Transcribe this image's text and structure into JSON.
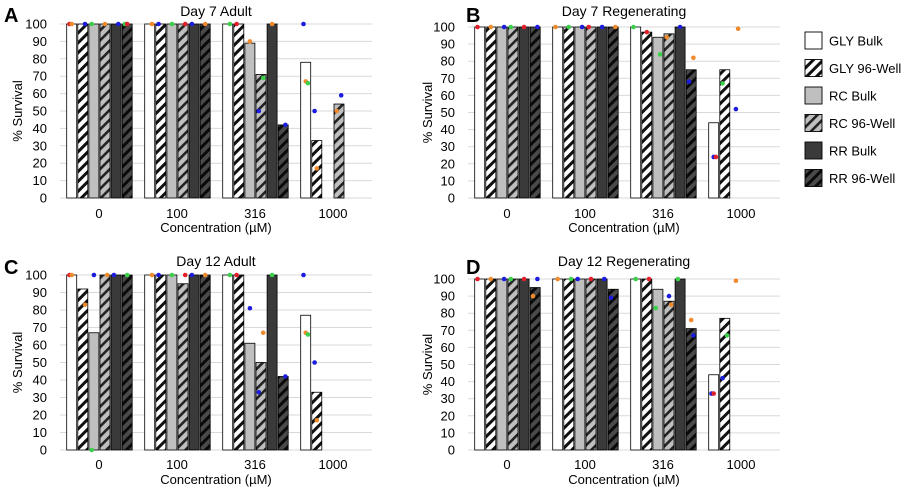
{
  "colors": {
    "gly_bulk": "#ffffff",
    "rc_bulk": "#bfbfbf",
    "rr_bulk": "#3a3a3a",
    "dot_orange": "#f08a2c",
    "dot_green": "#3ad04a",
    "dot_blue": "#1c1cde",
    "dot_red": "#e2202a",
    "grid": "#d9d9d9"
  },
  "legend": [
    {
      "name": "GLY Bulk",
      "color": "#ffffff",
      "pattern": "solid"
    },
    {
      "name": "GLY 96-Well",
      "color": "#ffffff",
      "pattern": "hatch"
    },
    {
      "name": "RC Bulk",
      "color": "#bfbfbf",
      "pattern": "solid"
    },
    {
      "name": "RC 96-Well",
      "color": "#bfbfbf",
      "pattern": "hatch"
    },
    {
      "name": "RR Bulk",
      "color": "#3a3a3a",
      "pattern": "solid"
    },
    {
      "name": "RR 96-Well",
      "color": "#3a3a3a",
      "pattern": "hatch"
    }
  ],
  "chart_data": [
    {
      "letter": "A",
      "type": "bar",
      "title": "Day 7 Adult",
      "xlabel": "Concentration (µM)",
      "ylabel": "% Survival",
      "ylim": [
        0,
        100
      ],
      "yticks": [
        "0",
        "10",
        "20",
        "30",
        "40",
        "50",
        "60",
        "70",
        "80",
        "90",
        "100"
      ],
      "categories": [
        "0",
        "100",
        "316",
        "1000"
      ],
      "series": [
        {
          "name": "GLY Bulk",
          "values": [
            100,
            100,
            100,
            78
          ]
        },
        {
          "name": "GLY 96-Well",
          "values": [
            100,
            100,
            100,
            33
          ]
        },
        {
          "name": "RC Bulk",
          "values": [
            100,
            100,
            89,
            null
          ]
        },
        {
          "name": "RC 96-Well",
          "values": [
            100,
            100,
            71,
            54
          ]
        },
        {
          "name": "RR Bulk",
          "values": [
            100,
            100,
            100,
            null
          ]
        },
        {
          "name": "RR 96-Well",
          "values": [
            100,
            100,
            42,
            null
          ]
        }
      ],
      "points": [
        {
          "c": 0,
          "s": 0,
          "y": 100,
          "color": "dot_red"
        },
        {
          "c": 0,
          "s": 0,
          "y": 100,
          "color": "dot_orange"
        },
        {
          "c": 0,
          "s": 1,
          "y": 100,
          "color": "dot_blue"
        },
        {
          "c": 0,
          "s": 2,
          "y": 100,
          "color": "dot_green"
        },
        {
          "c": 0,
          "s": 3,
          "y": 100,
          "color": "dot_orange"
        },
        {
          "c": 0,
          "s": 4,
          "y": 100,
          "color": "dot_blue"
        },
        {
          "c": 0,
          "s": 5,
          "y": 100,
          "color": "dot_green"
        },
        {
          "c": 0,
          "s": 5,
          "y": 100,
          "color": "dot_red"
        },
        {
          "c": 1,
          "s": 0,
          "y": 100,
          "color": "dot_orange"
        },
        {
          "c": 1,
          "s": 1,
          "y": 100,
          "color": "dot_blue"
        },
        {
          "c": 1,
          "s": 2,
          "y": 100,
          "color": "dot_green"
        },
        {
          "c": 1,
          "s": 3,
          "y": 100,
          "color": "dot_red"
        },
        {
          "c": 1,
          "s": 4,
          "y": 100,
          "color": "dot_blue"
        },
        {
          "c": 1,
          "s": 5,
          "y": 100,
          "color": "dot_orange"
        },
        {
          "c": 2,
          "s": 0,
          "y": 100,
          "color": "dot_green"
        },
        {
          "c": 2,
          "s": 1,
          "y": 100,
          "color": "dot_red"
        },
        {
          "c": 2,
          "s": 2,
          "y": 90,
          "color": "dot_orange"
        },
        {
          "c": 2,
          "s": 3,
          "y": 69,
          "color": "dot_green"
        },
        {
          "c": 2,
          "s": 3,
          "y": 50,
          "color": "dot_blue"
        },
        {
          "c": 2,
          "s": 4,
          "y": 100,
          "color": "dot_orange"
        },
        {
          "c": 2,
          "s": 5,
          "y": 42,
          "color": "dot_blue"
        },
        {
          "c": 3,
          "s": 0,
          "y": 100,
          "color": "dot_blue"
        },
        {
          "c": 3,
          "s": 0,
          "y": 67,
          "color": "dot_orange"
        },
        {
          "c": 3,
          "s": 0,
          "y": 66,
          "color": "dot_green"
        },
        {
          "c": 3,
          "s": 1,
          "y": 50,
          "color": "dot_blue"
        },
        {
          "c": 3,
          "s": 1,
          "y": 17,
          "color": "dot_orange"
        },
        {
          "c": 3,
          "s": 3,
          "y": 59,
          "color": "dot_blue"
        },
        {
          "c": 3,
          "s": 3,
          "y": 50,
          "color": "dot_orange"
        }
      ]
    },
    {
      "letter": "B",
      "type": "bar",
      "title": "Day 7 Regenerating",
      "xlabel": "Concentration (µM)",
      "ylabel": "% Survival",
      "ylim": [
        0,
        100
      ],
      "yticks": [
        "0",
        "10",
        "20",
        "30",
        "40",
        "50",
        "60",
        "70",
        "80",
        "90",
        "100"
      ],
      "categories": [
        "0",
        "100",
        "316",
        "1000"
      ],
      "series": [
        {
          "name": "GLY Bulk",
          "values": [
            100,
            100,
            100,
            44
          ]
        },
        {
          "name": "GLY 96-Well",
          "values": [
            100,
            100,
            97,
            75
          ]
        },
        {
          "name": "RC Bulk",
          "values": [
            100,
            100,
            94,
            null
          ]
        },
        {
          "name": "RC 96-Well",
          "values": [
            100,
            100,
            96,
            null
          ]
        },
        {
          "name": "RR Bulk",
          "values": [
            100,
            100,
            100,
            null
          ]
        },
        {
          "name": "RR 96-Well",
          "values": [
            100,
            100,
            75,
            null
          ]
        }
      ],
      "points": [
        {
          "c": 0,
          "s": 0,
          "y": 100,
          "color": "dot_red"
        },
        {
          "c": 0,
          "s": 1,
          "y": 100,
          "color": "dot_orange"
        },
        {
          "c": 0,
          "s": 2,
          "y": 100,
          "color": "dot_blue"
        },
        {
          "c": 0,
          "s": 3,
          "y": 100,
          "color": "dot_green"
        },
        {
          "c": 0,
          "s": 4,
          "y": 100,
          "color": "dot_red"
        },
        {
          "c": 0,
          "s": 5,
          "y": 100,
          "color": "dot_blue"
        },
        {
          "c": 1,
          "s": 0,
          "y": 100,
          "color": "dot_orange"
        },
        {
          "c": 1,
          "s": 1,
          "y": 100,
          "color": "dot_green"
        },
        {
          "c": 1,
          "s": 2,
          "y": 100,
          "color": "dot_blue"
        },
        {
          "c": 1,
          "s": 3,
          "y": 100,
          "color": "dot_red"
        },
        {
          "c": 1,
          "s": 4,
          "y": 100,
          "color": "dot_blue"
        },
        {
          "c": 1,
          "s": 5,
          "y": 100,
          "color": "dot_orange"
        },
        {
          "c": 2,
          "s": 0,
          "y": 100,
          "color": "dot_green"
        },
        {
          "c": 2,
          "s": 1,
          "y": 97,
          "color": "dot_red"
        },
        {
          "c": 2,
          "s": 2,
          "y": 84,
          "color": "dot_green"
        },
        {
          "c": 2,
          "s": 3,
          "y": 94,
          "color": "dot_orange"
        },
        {
          "c": 2,
          "s": 4,
          "y": 100,
          "color": "dot_blue"
        },
        {
          "c": 2,
          "s": 5,
          "y": 82,
          "color": "dot_orange"
        },
        {
          "c": 2,
          "s": 5,
          "y": 68,
          "color": "dot_blue"
        },
        {
          "c": 3,
          "s": 0,
          "y": 24,
          "color": "dot_blue"
        },
        {
          "c": 3,
          "s": 0,
          "y": 24,
          "color": "dot_red"
        },
        {
          "c": 3,
          "s": 1,
          "y": 67,
          "color": "dot_green"
        },
        {
          "c": 3,
          "s": 2,
          "y": 52,
          "color": "dot_blue"
        },
        {
          "c": 3,
          "s": 2,
          "y": 99,
          "color": "dot_orange"
        }
      ]
    },
    {
      "letter": "C",
      "type": "bar",
      "title": "Day 12 Adult",
      "xlabel": "Concentration (µM)",
      "ylabel": "% Survival",
      "ylim": [
        0,
        100
      ],
      "yticks": [
        "0",
        "10",
        "20",
        "30",
        "40",
        "50",
        "60",
        "70",
        "80",
        "90",
        "100"
      ],
      "categories": [
        "0",
        "100",
        "316",
        "1000"
      ],
      "series": [
        {
          "name": "GLY Bulk",
          "values": [
            100,
            100,
            100,
            77
          ]
        },
        {
          "name": "GLY 96-Well",
          "values": [
            92,
            100,
            100,
            33
          ]
        },
        {
          "name": "RC Bulk",
          "values": [
            67,
            100,
            61,
            null
          ]
        },
        {
          "name": "RC 96-Well",
          "values": [
            100,
            95,
            50,
            null
          ]
        },
        {
          "name": "RR Bulk",
          "values": [
            100,
            100,
            100,
            null
          ]
        },
        {
          "name": "RR 96-Well",
          "values": [
            100,
            100,
            42,
            null
          ]
        }
      ],
      "points": [
        {
          "c": 0,
          "s": 0,
          "y": 100,
          "color": "dot_red"
        },
        {
          "c": 0,
          "s": 0,
          "y": 100,
          "color": "dot_orange"
        },
        {
          "c": 0,
          "s": 1,
          "y": 83,
          "color": "dot_orange"
        },
        {
          "c": 0,
          "s": 2,
          "y": 0,
          "color": "dot_green"
        },
        {
          "c": 0,
          "s": 2,
          "y": 100,
          "color": "dot_blue"
        },
        {
          "c": 0,
          "s": 3,
          "y": 100,
          "color": "dot_orange"
        },
        {
          "c": 0,
          "s": 4,
          "y": 100,
          "color": "dot_blue"
        },
        {
          "c": 0,
          "s": 5,
          "y": 100,
          "color": "dot_green"
        },
        {
          "c": 1,
          "s": 0,
          "y": 100,
          "color": "dot_orange"
        },
        {
          "c": 1,
          "s": 1,
          "y": 100,
          "color": "dot_blue"
        },
        {
          "c": 1,
          "s": 2,
          "y": 100,
          "color": "dot_green"
        },
        {
          "c": 1,
          "s": 3,
          "y": 100,
          "color": "dot_red"
        },
        {
          "c": 1,
          "s": 4,
          "y": 100,
          "color": "dot_blue"
        },
        {
          "c": 1,
          "s": 5,
          "y": 100,
          "color": "dot_orange"
        },
        {
          "c": 2,
          "s": 0,
          "y": 100,
          "color": "dot_green"
        },
        {
          "c": 2,
          "s": 1,
          "y": 100,
          "color": "dot_red"
        },
        {
          "c": 2,
          "s": 2,
          "y": 81,
          "color": "dot_blue"
        },
        {
          "c": 2,
          "s": 3,
          "y": 67,
          "color": "dot_orange"
        },
        {
          "c": 2,
          "s": 3,
          "y": 33,
          "color": "dot_blue"
        },
        {
          "c": 2,
          "s": 4,
          "y": 100,
          "color": "dot_green"
        },
        {
          "c": 2,
          "s": 5,
          "y": 42,
          "color": "dot_blue"
        },
        {
          "c": 3,
          "s": 0,
          "y": 100,
          "color": "dot_blue"
        },
        {
          "c": 3,
          "s": 0,
          "y": 67,
          "color": "dot_orange"
        },
        {
          "c": 3,
          "s": 0,
          "y": 66,
          "color": "dot_green"
        },
        {
          "c": 3,
          "s": 1,
          "y": 50,
          "color": "dot_blue"
        },
        {
          "c": 3,
          "s": 1,
          "y": 17,
          "color": "dot_orange"
        }
      ]
    },
    {
      "letter": "D",
      "type": "bar",
      "title": "Day 12 Regenerating",
      "xlabel": "Concentration (µM)",
      "ylabel": "% Survival",
      "ylim": [
        0,
        100
      ],
      "yticks": [
        "0",
        "10",
        "20",
        "30",
        "40",
        "50",
        "60",
        "70",
        "80",
        "90",
        "100"
      ],
      "categories": [
        "0",
        "100",
        "316",
        "1000"
      ],
      "series": [
        {
          "name": "GLY Bulk",
          "values": [
            100,
            100,
            100,
            44
          ]
        },
        {
          "name": "GLY 96-Well",
          "values": [
            100,
            100,
            100,
            77
          ]
        },
        {
          "name": "RC Bulk",
          "values": [
            100,
            100,
            94,
            null
          ]
        },
        {
          "name": "RC 96-Well",
          "values": [
            100,
            100,
            87,
            null
          ]
        },
        {
          "name": "RR Bulk",
          "values": [
            100,
            100,
            100,
            null
          ]
        },
        {
          "name": "RR 96-Well",
          "values": [
            95,
            94,
            71,
            null
          ]
        }
      ],
      "points": [
        {
          "c": 0,
          "s": 0,
          "y": 100,
          "color": "dot_red"
        },
        {
          "c": 0,
          "s": 1,
          "y": 100,
          "color": "dot_orange"
        },
        {
          "c": 0,
          "s": 2,
          "y": 100,
          "color": "dot_blue"
        },
        {
          "c": 0,
          "s": 3,
          "y": 100,
          "color": "dot_green"
        },
        {
          "c": 0,
          "s": 4,
          "y": 100,
          "color": "dot_red"
        },
        {
          "c": 0,
          "s": 5,
          "y": 100,
          "color": "dot_blue"
        },
        {
          "c": 0,
          "s": 5,
          "y": 90,
          "color": "dot_orange"
        },
        {
          "c": 1,
          "s": 0,
          "y": 100,
          "color": "dot_orange"
        },
        {
          "c": 1,
          "s": 1,
          "y": 100,
          "color": "dot_green"
        },
        {
          "c": 1,
          "s": 2,
          "y": 100,
          "color": "dot_blue"
        },
        {
          "c": 1,
          "s": 3,
          "y": 100,
          "color": "dot_red"
        },
        {
          "c": 1,
          "s": 4,
          "y": 100,
          "color": "dot_blue"
        },
        {
          "c": 1,
          "s": 5,
          "y": 89,
          "color": "dot_blue"
        },
        {
          "c": 2,
          "s": 0,
          "y": 100,
          "color": "dot_green"
        },
        {
          "c": 2,
          "s": 1,
          "y": 100,
          "color": "dot_red"
        },
        {
          "c": 2,
          "s": 2,
          "y": 83,
          "color": "dot_green"
        },
        {
          "c": 2,
          "s": 3,
          "y": 90,
          "color": "dot_blue"
        },
        {
          "c": 2,
          "s": 3,
          "y": 85,
          "color": "dot_orange"
        },
        {
          "c": 2,
          "s": 4,
          "y": 100,
          "color": "dot_green"
        },
        {
          "c": 2,
          "s": 5,
          "y": 76,
          "color": "dot_orange"
        },
        {
          "c": 2,
          "s": 5,
          "y": 67,
          "color": "dot_blue"
        },
        {
          "c": 3,
          "s": 0,
          "y": 33,
          "color": "dot_blue"
        },
        {
          "c": 3,
          "s": 0,
          "y": 33,
          "color": "dot_red"
        },
        {
          "c": 3,
          "s": 1,
          "y": 67,
          "color": "dot_green"
        },
        {
          "c": 3,
          "s": 1,
          "y": 42,
          "color": "dot_blue"
        },
        {
          "c": 3,
          "s": 2,
          "y": 99,
          "color": "dot_orange"
        }
      ]
    }
  ]
}
